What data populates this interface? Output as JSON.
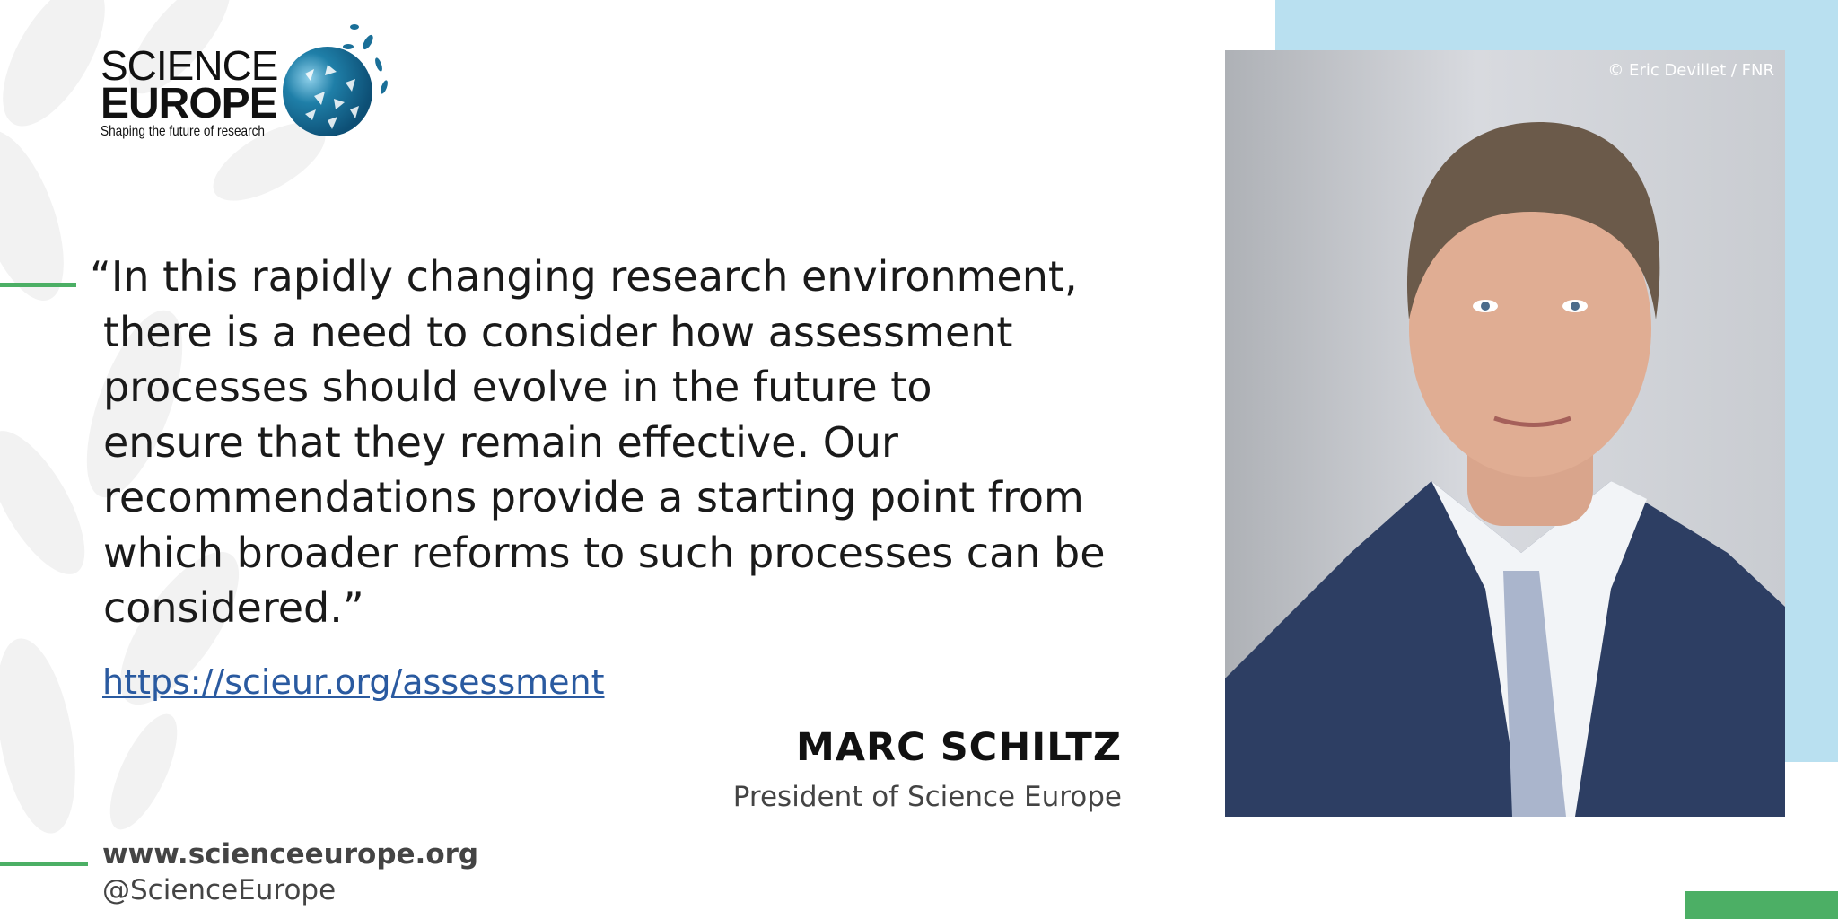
{
  "logo": {
    "line1": "SCIENCE",
    "line2": "EUROPE",
    "tagline": "Shaping the future of research"
  },
  "photo": {
    "credit": "© Eric Devillet / FNR"
  },
  "quote": {
    "lines": [
      "“In this rapidly changing research environment,",
      "there is a need to consider how assessment",
      "processes should evolve in the future to",
      "ensure that they remain effective. Our",
      "recommendations provide a starting point from",
      "which broader reforms to such processes can be",
      "considered.”"
    ]
  },
  "link": {
    "url": "https://scieur.org/assessment"
  },
  "person": {
    "name": "MARC SCHILTZ",
    "role": "President of Science Europe"
  },
  "footer": {
    "website": "www.scienceeurope.org",
    "handle": "@ScienceEurope"
  },
  "colors": {
    "accent_green": "#4caf65",
    "light_blue": "#b9e0f0",
    "logo_blue": "#1a6f98",
    "link_blue": "#2a5aa0"
  }
}
